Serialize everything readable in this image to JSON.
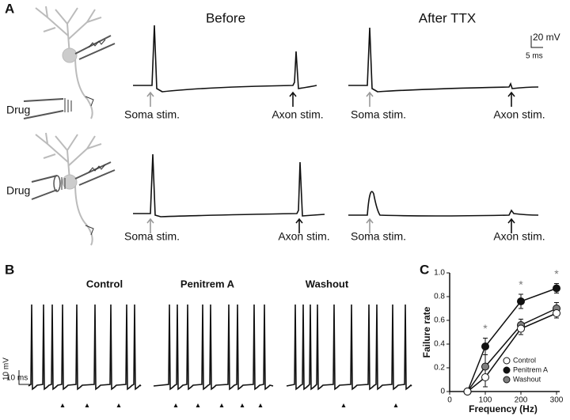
{
  "panel_a": {
    "label": "A",
    "column_titles": [
      "Before",
      "After TTX"
    ],
    "drug_labels": [
      "Drug",
      "Drug"
    ],
    "soma_labels": [
      "Soma stim.",
      "Soma stim.",
      "Soma stim.",
      "Soma stim."
    ],
    "axon_labels": [
      "Axon stim.",
      "Axon stim.",
      "Axon stim.",
      "Axon stim."
    ],
    "scale_voltage": "20 mV",
    "scale_time": "5 ms"
  },
  "panel_b": {
    "label": "B",
    "titles": [
      "Control",
      "Penitrem A",
      "Washout"
    ],
    "scale_voltage": "10 mV",
    "scale_time": "10 ms"
  },
  "panel_c_label": "C",
  "chart_data": {
    "type": "line",
    "xlabel": "Frequency (Hz)",
    "ylabel": "Failure rate",
    "x": [
      50,
      100,
      200,
      300
    ],
    "series": [
      {
        "name": "Control",
        "color": "#ffffff",
        "values": [
          0,
          0.12,
          0.53,
          0.66
        ],
        "errors": [
          0,
          0.08,
          0.05,
          0.04
        ]
      },
      {
        "name": "Penitrem A",
        "color": "#111111",
        "values": [
          0,
          0.38,
          0.76,
          0.87
        ],
        "errors": [
          0,
          0.07,
          0.06,
          0.04
        ]
      },
      {
        "name": "Washout",
        "color": "#7f7f7f",
        "values": [
          0,
          0.21,
          0.56,
          0.7
        ],
        "errors": [
          0,
          0.1,
          0.05,
          0.05
        ]
      }
    ],
    "significance_labels": [
      null,
      "*",
      "*",
      "*"
    ],
    "xlim": [
      0,
      300
    ],
    "xticks": [
      0,
      100,
      200,
      300
    ],
    "ylim": [
      0,
      1
    ],
    "yticks": [
      0,
      0.2,
      0.4,
      0.6,
      0.8,
      {
        "value": 1,
        "label": "1.0"
      }
    ]
  }
}
